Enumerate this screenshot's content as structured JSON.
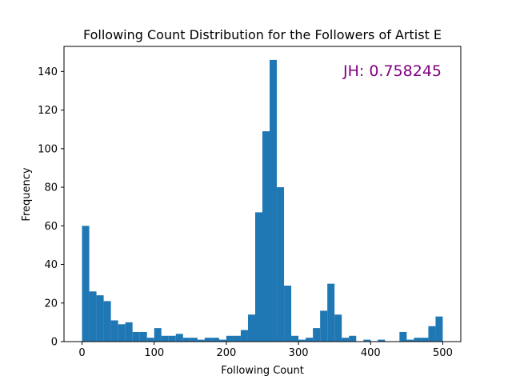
{
  "chart_data": {
    "type": "bar",
    "title": "Following Count Distribution for the Followers of Artist E",
    "xlabel": "Following Count",
    "ylabel": "Frequency",
    "xlim": [
      -25,
      525
    ],
    "ylim": [
      0,
      153
    ],
    "xticks": [
      0,
      100,
      200,
      300,
      400,
      500
    ],
    "yticks": [
      0,
      20,
      40,
      60,
      80,
      100,
      120,
      140
    ],
    "bin_width": 10,
    "bins_start": [
      0,
      10,
      20,
      30,
      40,
      50,
      60,
      70,
      80,
      90,
      100,
      110,
      120,
      130,
      140,
      150,
      160,
      170,
      180,
      190,
      200,
      210,
      220,
      230,
      240,
      250,
      260,
      270,
      280,
      290,
      300,
      310,
      320,
      330,
      340,
      350,
      360,
      370,
      380,
      390,
      400,
      410,
      420,
      430,
      440,
      450,
      460,
      470,
      480,
      490
    ],
    "values": [
      60,
      26,
      24,
      21,
      11,
      9,
      10,
      5,
      5,
      2,
      7,
      3,
      3,
      4,
      2,
      2,
      1,
      2,
      2,
      1,
      3,
      3,
      6,
      14,
      67,
      109,
      146,
      80,
      29,
      3,
      1,
      2,
      7,
      16,
      30,
      14,
      2,
      3,
      0,
      1,
      0,
      1,
      0,
      0,
      5,
      1,
      2,
      2,
      8,
      13
    ],
    "bar_color": "#1f77b4",
    "annotation": {
      "text": "JH: 0.758245",
      "color": "#800080",
      "position": "top-right"
    },
    "grid": false,
    "legend": null
  }
}
